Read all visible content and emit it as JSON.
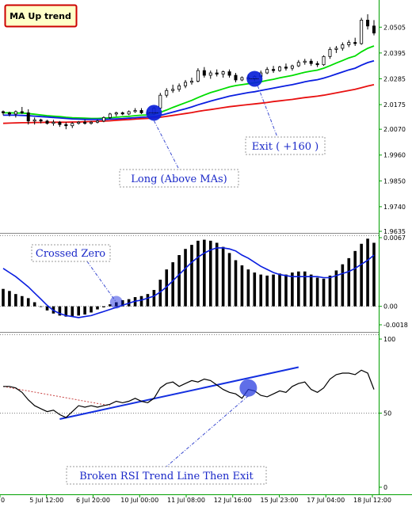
{
  "title": "MA Up trend",
  "annotations": {
    "long": "Long (Above MAs)",
    "exit": "Exit ( +160 )",
    "crossed_zero": "Crossed Zero",
    "rsi_break": "Broken RSI Trend Line Then Exit"
  },
  "x_ticks": [
    "0",
    "5 Jul 12:00",
    "6 Jul 20:00",
    "10 Jul 00:00",
    "11 Jul 08:00",
    "12 Jul 16:00",
    "15 Jul 23:00",
    "17 Jul 04:00",
    "18 Jul 12:00"
  ],
  "chart_data": [
    {
      "type": "line",
      "panel": "price",
      "y_ticks": [
        "2.0505",
        "2.0395",
        "2.0285",
        "2.0175",
        "2.0070",
        "1.9960",
        "1.9850",
        "1.9740",
        "1.9635"
      ],
      "ylim": [
        1.9635,
        2.056
      ],
      "candles": [
        [
          2.0145,
          2.015,
          2.013,
          2.014
        ],
        [
          2.014,
          2.0145,
          2.0125,
          2.0135
        ],
        [
          2.0135,
          2.015,
          2.012,
          2.0145
        ],
        [
          2.0145,
          2.0165,
          2.0135,
          2.014
        ],
        [
          2.014,
          2.0155,
          2.009,
          2.0105
        ],
        [
          2.0105,
          2.012,
          2.009,
          2.011
        ],
        [
          2.011,
          2.0115,
          2.0095,
          2.0105
        ],
        [
          2.0105,
          2.011,
          2.009,
          2.0095
        ],
        [
          2.0095,
          2.011,
          2.0085,
          2.01
        ],
        [
          2.01,
          2.0105,
          2.008,
          2.009
        ],
        [
          2.009,
          2.01,
          2.007,
          2.0085
        ],
        [
          2.0085,
          2.01,
          2.0075,
          2.0095
        ],
        [
          2.0095,
          2.0105,
          2.009,
          2.01
        ],
        [
          2.01,
          2.011,
          2.009,
          2.0095
        ],
        [
          2.0095,
          2.0105,
          2.009,
          2.01
        ],
        [
          2.01,
          2.011,
          2.0095,
          2.0105
        ],
        [
          2.0105,
          2.0125,
          2.01,
          2.012
        ],
        [
          2.012,
          2.014,
          2.0115,
          2.0135
        ],
        [
          2.0135,
          2.0145,
          2.0125,
          2.014
        ],
        [
          2.014,
          2.0145,
          2.013,
          2.0135
        ],
        [
          2.0135,
          2.015,
          2.013,
          2.0145
        ],
        [
          2.0145,
          2.016,
          2.014,
          2.015
        ],
        [
          2.015,
          2.016,
          2.0135,
          2.014
        ],
        [
          2.014,
          2.015,
          2.013,
          2.0135
        ],
        [
          2.0135,
          2.0165,
          2.013,
          2.016
        ],
        [
          2.016,
          2.0225,
          2.0155,
          2.0215
        ],
        [
          2.0215,
          2.0245,
          2.0205,
          2.0235
        ],
        [
          2.0235,
          2.026,
          2.0225,
          2.024
        ],
        [
          2.024,
          2.0265,
          2.023,
          2.0255
        ],
        [
          2.0255,
          2.028,
          2.0245,
          2.027
        ],
        [
          2.027,
          2.029,
          2.026,
          2.0275
        ],
        [
          2.0275,
          2.033,
          2.027,
          2.032
        ],
        [
          2.032,
          2.0335,
          2.029,
          2.03
        ],
        [
          2.03,
          2.032,
          2.0285,
          2.031
        ],
        [
          2.031,
          2.0325,
          2.0295,
          2.0305
        ],
        [
          2.0305,
          2.032,
          2.029,
          2.0315
        ],
        [
          2.0315,
          2.0325,
          2.029,
          2.03
        ],
        [
          2.03,
          2.031,
          2.027,
          2.028
        ],
        [
          2.028,
          2.0295,
          2.0275,
          2.029
        ],
        [
          2.029,
          2.0305,
          2.028,
          2.0285
        ],
        [
          2.0285,
          2.03,
          2.0275,
          2.0295
        ],
        [
          2.0295,
          2.032,
          2.029,
          2.031
        ],
        [
          2.031,
          2.0335,
          2.0305,
          2.0325
        ],
        [
          2.0325,
          2.034,
          2.031,
          2.032
        ],
        [
          2.032,
          2.034,
          2.0315,
          2.0335
        ],
        [
          2.0335,
          2.035,
          2.032,
          2.033
        ],
        [
          2.033,
          2.0345,
          2.032,
          2.034
        ],
        [
          2.034,
          2.0365,
          2.0335,
          2.0355
        ],
        [
          2.0355,
          2.037,
          2.0345,
          2.036
        ],
        [
          2.036,
          2.037,
          2.034,
          2.035
        ],
        [
          2.035,
          2.036,
          2.0335,
          2.0345
        ],
        [
          2.0345,
          2.0385,
          2.034,
          2.038
        ],
        [
          2.038,
          2.042,
          2.037,
          2.041
        ],
        [
          2.041,
          2.0425,
          2.0395,
          2.0415
        ],
        [
          2.0415,
          2.044,
          2.0405,
          2.043
        ],
        [
          2.043,
          2.045,
          2.042,
          2.044
        ],
        [
          2.044,
          2.046,
          2.0425,
          2.0435
        ],
        [
          2.0435,
          2.0545,
          2.043,
          2.0535
        ],
        [
          2.0535,
          2.056,
          2.0495,
          2.051
        ],
        [
          2.051,
          2.0535,
          2.047,
          2.048
        ]
      ],
      "series": [
        {
          "color": "#00dd00",
          "values": [
            2.014,
            2.014,
            2.0139,
            2.0139,
            2.0137,
            2.0134,
            2.0131,
            2.0128,
            2.0126,
            2.0124,
            2.0121,
            2.0119,
            2.0118,
            2.0117,
            2.0116,
            2.0116,
            2.0117,
            2.0119,
            2.0121,
            2.0123,
            2.0125,
            2.0128,
            2.013,
            2.0131,
            2.0134,
            2.0142,
            2.0152,
            2.0163,
            2.0173,
            2.0183,
            2.0193,
            2.0205,
            2.0216,
            2.0226,
            2.0234,
            2.0242,
            2.025,
            2.0256,
            2.026,
            2.0264,
            2.0268,
            2.0272,
            2.0278,
            2.0283,
            2.0289,
            2.0294,
            2.0299,
            2.0306,
            2.0313,
            2.0318,
            2.0322,
            2.033,
            2.0341,
            2.0352,
            2.0363,
            2.0374,
            2.0382,
            2.04,
            2.0415,
            2.0425
          ]
        },
        {
          "color": "#0a1ee0",
          "values": [
            2.013,
            2.013,
            2.013,
            2.0129,
            2.0128,
            2.0126,
            2.0124,
            2.0122,
            2.012,
            2.0118,
            2.0116,
            2.0114,
            2.0113,
            2.0112,
            2.0112,
            2.0112,
            2.0112,
            2.0113,
            2.0114,
            2.0115,
            2.0117,
            2.0119,
            2.0121,
            2.0122,
            2.0124,
            2.0129,
            2.0136,
            2.0143,
            2.015,
            2.0157,
            2.0165,
            2.0174,
            2.0182,
            2.019,
            2.0197,
            2.0204,
            2.0211,
            2.0216,
            2.0221,
            2.0226,
            2.023,
            2.0235,
            2.024,
            2.0245,
            2.025,
            2.0255,
            2.026,
            2.0266,
            2.0272,
            2.0277,
            2.0281,
            2.0288,
            2.0296,
            2.0305,
            2.0314,
            2.0323,
            2.033,
            2.0343,
            2.0354,
            2.0362
          ]
        },
        {
          "color": "#e81010",
          "values": [
            2.0095,
            2.0096,
            2.0097,
            2.0098,
            2.0098,
            2.0099,
            2.0099,
            2.01,
            2.01,
            2.01,
            2.01,
            2.0101,
            2.0101,
            2.0102,
            2.0103,
            2.0104,
            2.0105,
            2.0106,
            2.0108,
            2.011,
            2.0111,
            2.0113,
            2.0115,
            2.0116,
            2.0118,
            2.0121,
            2.0125,
            2.0129,
            2.0133,
            2.0137,
            2.0141,
            2.0146,
            2.015,
            2.0154,
            2.0158,
            2.0162,
            2.0166,
            2.0169,
            2.0172,
            2.0175,
            2.0178,
            2.0181,
            2.0184,
            2.0188,
            2.0191,
            2.0194,
            2.0197,
            2.0201,
            2.0205,
            2.0208,
            2.0211,
            2.0215,
            2.022,
            2.0225,
            2.023,
            2.0235,
            2.024,
            2.0247,
            2.0254,
            2.026
          ]
        }
      ],
      "markers": [
        {
          "index": 24,
          "value": 2.014
        },
        {
          "index": 40,
          "value": 2.0285
        }
      ]
    },
    {
      "type": "bar",
      "panel": "macd",
      "y_ticks": [
        "0.0067",
        "0.00",
        "-0.0018"
      ],
      "ylim": [
        -0.0018,
        0.0067
      ],
      "values": [
        0.0017,
        0.0015,
        0.0012,
        0.001,
        0.0008,
        0.0004,
        0.0,
        -0.0004,
        -0.0007,
        -0.0009,
        -0.001,
        -0.001,
        -0.0009,
        -0.0008,
        -0.0006,
        -0.0003,
        -0.0001,
        0.0002,
        0.0004,
        0.0006,
        0.0007,
        0.0009,
        0.001,
        0.0012,
        0.0016,
        0.0026,
        0.0036,
        0.0043,
        0.005,
        0.0056,
        0.006,
        0.0064,
        0.0065,
        0.0064,
        0.0062,
        0.0058,
        0.0052,
        0.0045,
        0.004,
        0.0036,
        0.0033,
        0.0031,
        0.003,
        0.0031,
        0.0032,
        0.0031,
        0.0033,
        0.0034,
        0.0034,
        0.0031,
        0.0028,
        0.0027,
        0.003,
        0.0035,
        0.0041,
        0.0047,
        0.0054,
        0.0061,
        0.0066,
        0.0062
      ],
      "signal": [
        0.0037,
        0.0033,
        0.0029,
        0.0024,
        0.0019,
        0.0013,
        0.0007,
        0.0001,
        -0.0004,
        -0.0007,
        -0.0009,
        -0.001,
        -0.0011,
        -0.001,
        -0.0009,
        -0.0007,
        -0.0005,
        -0.0003,
        -0.0001,
        0.0001,
        0.0003,
        0.0005,
        0.0006,
        0.0008,
        0.001,
        0.0014,
        0.0019,
        0.0025,
        0.0031,
        0.0037,
        0.0043,
        0.0048,
        0.0052,
        0.0055,
        0.0057,
        0.0057,
        0.0056,
        0.0054,
        0.005,
        0.0047,
        0.0043,
        0.0039,
        0.0036,
        0.0033,
        0.0031,
        0.003,
        0.0029,
        0.0029,
        0.0029,
        0.0029,
        0.0029,
        0.0028,
        0.0028,
        0.003,
        0.0032,
        0.0034,
        0.0037,
        0.0041,
        0.0045,
        0.005
      ]
    },
    {
      "type": "line",
      "panel": "rsi",
      "y_ticks": [
        "100",
        "50",
        "0"
      ],
      "ylim": [
        0,
        100
      ],
      "level": 50,
      "values": [
        68,
        68,
        67,
        64,
        59,
        55,
        53,
        51,
        52,
        49,
        47,
        51,
        55,
        54,
        55,
        54,
        55,
        56,
        58,
        57,
        58,
        60,
        58,
        57,
        60,
        67,
        70,
        71,
        68,
        70,
        72,
        71,
        73,
        72,
        69,
        66,
        64,
        63,
        60,
        66,
        65,
        62,
        61,
        63,
        65,
        64,
        68,
        70,
        71,
        66,
        64,
        67,
        73,
        76,
        77,
        77,
        76,
        79,
        77,
        66
      ],
      "trendline": [
        [
          9,
          46
        ],
        [
          47,
          81
        ]
      ],
      "dashed_line": [
        [
          0,
          68
        ],
        [
          17,
          55
        ]
      ],
      "marker": {
        "index": 39,
        "value": 67
      }
    }
  ]
}
